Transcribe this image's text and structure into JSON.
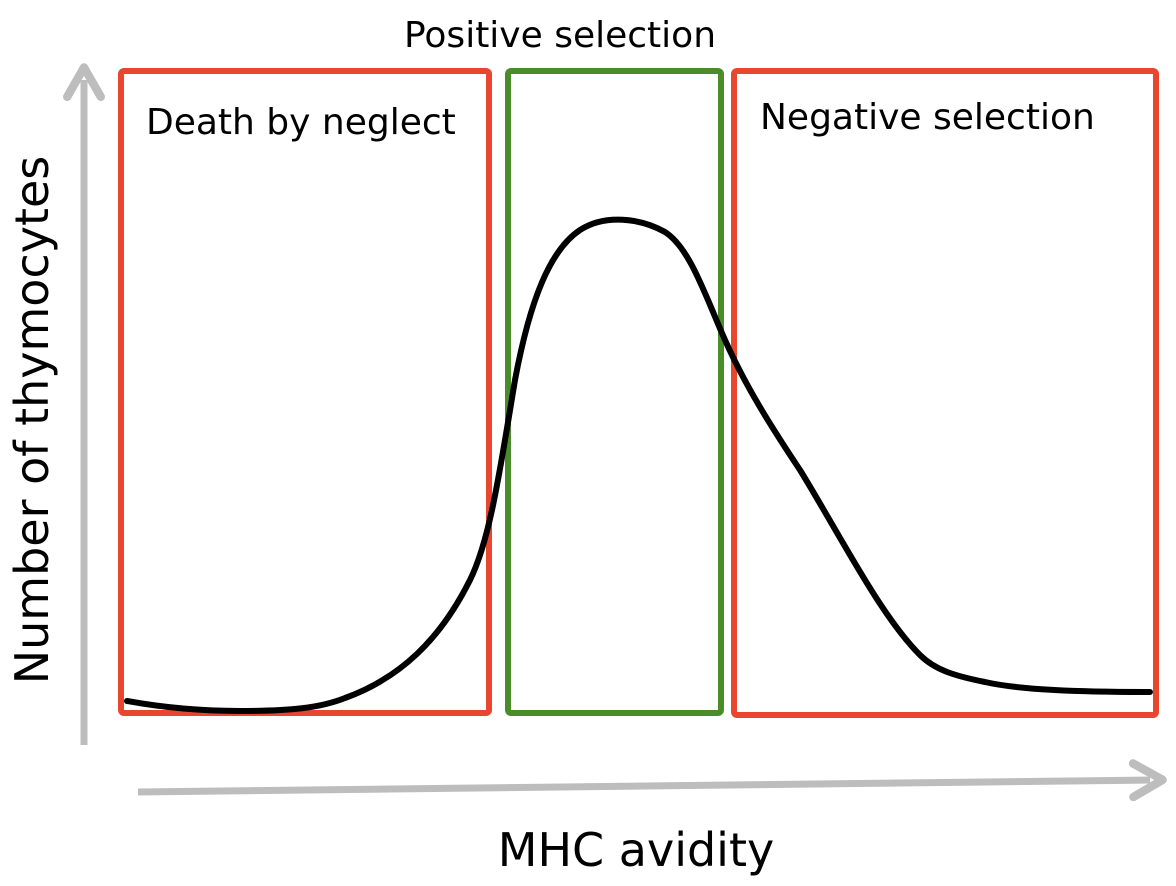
{
  "diagram": {
    "regions": [
      {
        "label": "Death by neglect",
        "color": "#e8462f"
      },
      {
        "label": "Positive selection",
        "color": "#4a8c2a"
      },
      {
        "label": "Negative selection",
        "color": "#e8462f"
      }
    ],
    "axes": {
      "x_label": "MHC avidity",
      "y_label": "Number of thymocytes",
      "arrow_color": "#bdbdbd"
    },
    "curve": {
      "shape": "bell curve",
      "color": "#000000"
    }
  }
}
